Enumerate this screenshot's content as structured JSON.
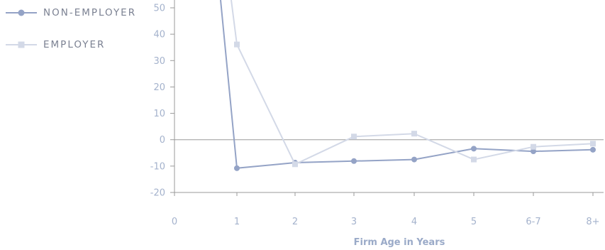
{
  "chart_data": {
    "type": "line",
    "categories": [
      "0",
      "1",
      "2",
      "3",
      "4",
      "5",
      "6-7",
      "8+"
    ],
    "xlabel": "Firm Age in Years",
    "ylabel": "",
    "ylim": [
      -20,
      50
    ],
    "yticks": [
      "50",
      "40",
      "30",
      "20",
      "10",
      "0",
      "-10",
      "-20"
    ],
    "grid": false,
    "legend_position": "top-left",
    "series": [
      {
        "name": "NON-EMPLOYER",
        "color": "#94a3c6",
        "marker": "circle",
        "values": [
          null,
          -10.8,
          -8.7,
          -8.1,
          -7.5,
          -3.4,
          -4.4,
          -3.8
        ],
        "entry_from_above": true
      },
      {
        "name": "EMPLOYER",
        "color": "#d3d9e7",
        "marker": "square",
        "values": [
          null,
          36.1,
          -9.3,
          1.2,
          2.3,
          -7.5,
          -2.7,
          -1.5
        ],
        "entry_from_above": true
      }
    ]
  }
}
